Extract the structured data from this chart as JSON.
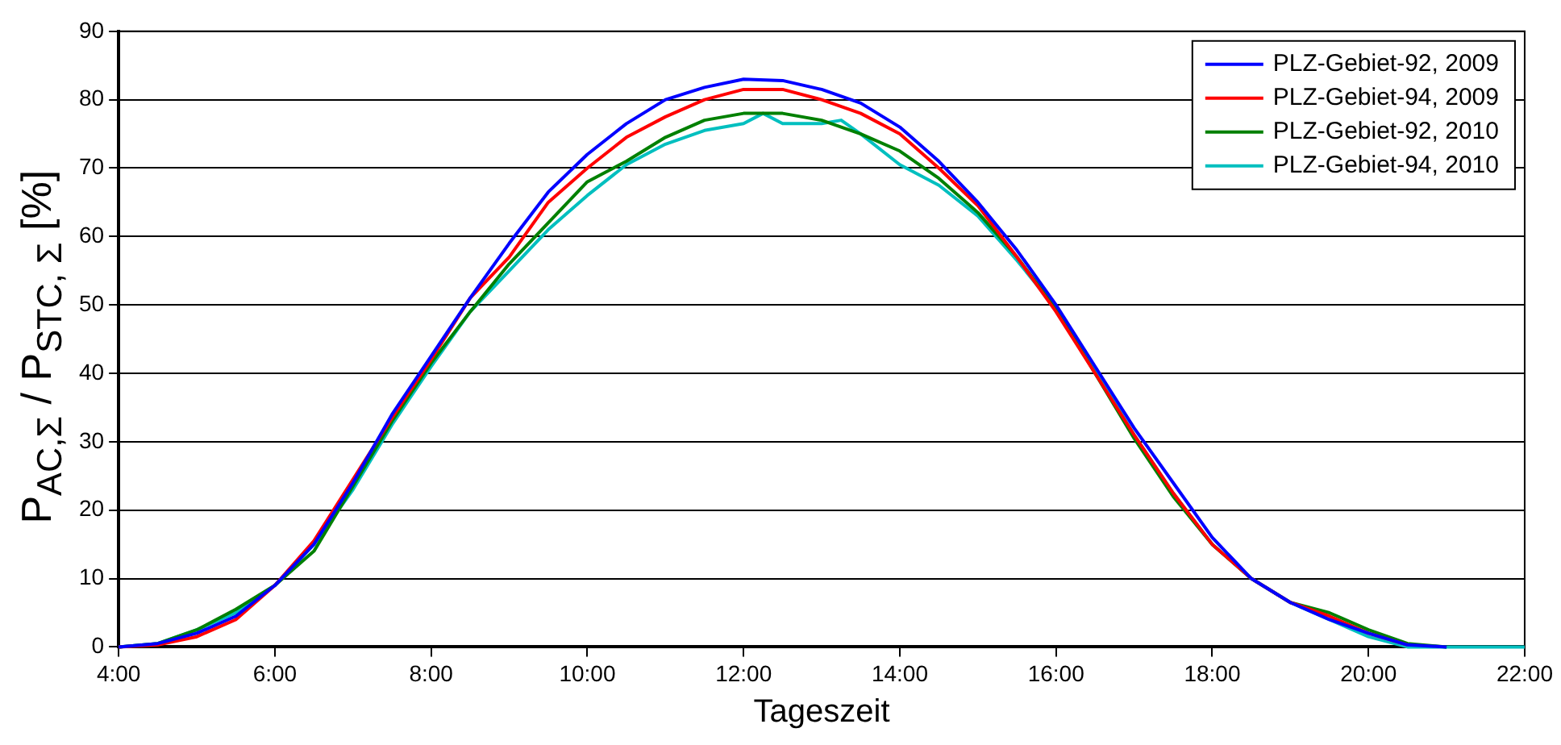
{
  "chart_data": {
    "type": "line",
    "xlabel": "Tageszeit",
    "ylabel": "P$_{AC,Σ}$ / P$_{STC, Σ}$  [%]",
    "xlim": [
      4,
      22
    ],
    "xticks": [
      {
        "value": 4,
        "label": "4:00"
      },
      {
        "value": 6,
        "label": "6:00"
      },
      {
        "value": 8,
        "label": "8:00"
      },
      {
        "value": 10,
        "label": "10:00"
      },
      {
        "value": 12,
        "label": "12:00"
      },
      {
        "value": 14,
        "label": "14:00"
      },
      {
        "value": 16,
        "label": "16:00"
      },
      {
        "value": 18,
        "label": "18:00"
      },
      {
        "value": 20,
        "label": "20:00"
      },
      {
        "value": 22,
        "label": "22:00"
      }
    ],
    "ylim": [
      0,
      90
    ],
    "yticks": [
      0,
      10,
      20,
      30,
      40,
      50,
      60,
      70,
      80,
      90
    ],
    "grid": "y",
    "legend": "top right",
    "marker": "none",
    "line_style": "solid",
    "series": [
      {
        "name": "PLZ-Gebiet-92, 2009",
        "color": "#0000ff",
        "x": [
          4,
          4.5,
          5,
          5.5,
          6,
          6.5,
          7,
          7.5,
          8,
          8.5,
          9,
          9.5,
          10,
          10.5,
          11,
          11.5,
          12,
          12.5,
          13,
          13.5,
          14,
          14.5,
          15,
          15.5,
          16,
          16.5,
          17,
          17.5,
          18,
          18.5,
          19,
          19.5,
          20,
          20.5,
          21
        ],
        "values": [
          0,
          0.5,
          2,
          4.5,
          9,
          15,
          24,
          34,
          42.5,
          51,
          59,
          66.5,
          72,
          76.5,
          80,
          81.8,
          83,
          82.8,
          81.5,
          79.5,
          76,
          71,
          65,
          58,
          50,
          41,
          32,
          24,
          16,
          10,
          6.5,
          4,
          2,
          0.3,
          0
        ]
      },
      {
        "name": "PLZ-Gebiet-94, 2009",
        "color": "#ff0000",
        "x": [
          4,
          4.5,
          5,
          5.5,
          6,
          6.5,
          7,
          7.5,
          8,
          8.5,
          9,
          9.5,
          10,
          10.5,
          11,
          11.5,
          12,
          12.5,
          13,
          13.5,
          14,
          14.5,
          15,
          15.5,
          16,
          16.5,
          17,
          17.5,
          18,
          18.5,
          19,
          19.5,
          20,
          20.5
        ],
        "values": [
          0,
          0.3,
          1.5,
          4,
          9,
          15.5,
          24.5,
          33.5,
          42,
          51,
          57,
          65,
          70,
          74.5,
          77.5,
          80,
          81.5,
          81.5,
          80,
          78,
          75,
          70,
          64.5,
          57,
          49,
          40,
          31,
          22.5,
          15,
          10,
          6.5,
          4.5,
          2,
          0.3
        ]
      },
      {
        "name": "PLZ-Gebiet-92, 2010",
        "color": "#008000",
        "x": [
          4,
          4.5,
          5,
          5.5,
          6,
          6.5,
          7,
          7.5,
          8,
          8.5,
          9,
          9.5,
          10,
          10.5,
          11,
          11.5,
          12,
          12.5,
          13,
          13.5,
          14,
          14.5,
          15,
          15.5,
          16,
          16.5,
          17,
          17.5,
          18,
          18.5,
          19,
          19.5,
          20,
          20.5,
          21
        ],
        "values": [
          0,
          0.5,
          2.5,
          5.5,
          9,
          14,
          23.5,
          33,
          41.5,
          49,
          56,
          62,
          68,
          71,
          74.5,
          77,
          78,
          78,
          77,
          75,
          72.5,
          68.5,
          63.5,
          57,
          49.5,
          40,
          30.5,
          22,
          15,
          10,
          6.5,
          5,
          2.5,
          0.5,
          0
        ]
      },
      {
        "name": "PLZ-Gebiet-94, 2010",
        "color": "#00bfbf",
        "x": [
          4,
          4.5,
          5,
          5.5,
          6,
          6.5,
          7,
          7.5,
          8,
          8.5,
          9,
          9.5,
          10,
          10.5,
          11,
          11.5,
          12,
          12.25,
          12.5,
          13,
          13.25,
          13.5,
          14,
          14.5,
          15,
          15.5,
          16,
          16.5,
          17,
          17.5,
          18,
          18.5,
          19,
          19.5,
          20,
          20.5,
          21,
          22
        ],
        "values": [
          0,
          0.5,
          2.5,
          5,
          9,
          15,
          23,
          32.5,
          41,
          49,
          55,
          61,
          66,
          70.5,
          73.5,
          75.5,
          76.5,
          78,
          76.5,
          76.5,
          77,
          75,
          70.5,
          67.5,
          63,
          56.5,
          49.5,
          40.5,
          31,
          22.5,
          15,
          10,
          6.5,
          4,
          1.5,
          0,
          0,
          0
        ]
      }
    ]
  }
}
